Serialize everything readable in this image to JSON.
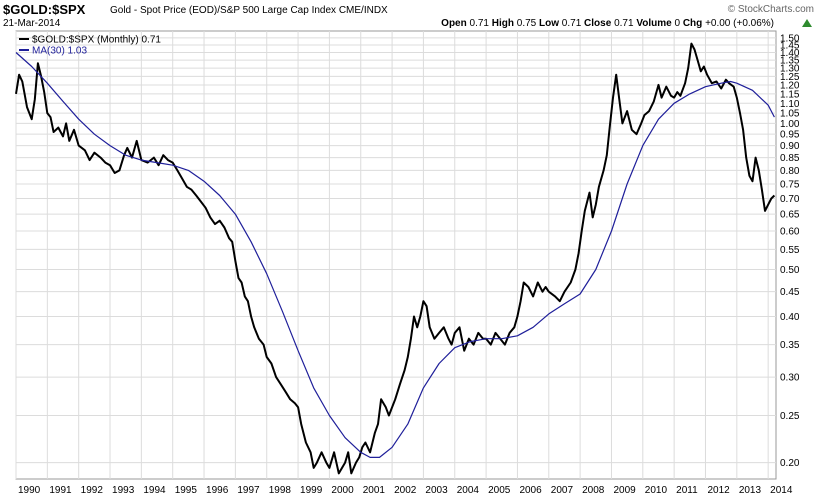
{
  "header": {
    "symbol": "$GOLD:$SPX",
    "description": "Gold - Spot Price (EOD)/S&P 500 Large Cap Index",
    "exchange": "CME/INDX",
    "date": "21-Mar-2014",
    "brand": "© StockCharts.com",
    "quote": {
      "open_label": "Open",
      "open": "0.71",
      "high_label": "High",
      "high": "0.75",
      "low_label": "Low",
      "low": "0.71",
      "close_label": "Close",
      "close": "0.71",
      "volume_label": "Volume",
      "volume": "0",
      "chg_label": "Chg",
      "chg": "+0.00 (+0.06%)"
    },
    "up_icon": "up-triangle-icon",
    "up_color": "#2e8b2e"
  },
  "chart_data": {
    "type": "line",
    "xlim": [
      1990.0,
      2014.25
    ],
    "ylim": [
      0.185,
      1.55
    ],
    "y_scale": "log",
    "grid": true,
    "legend_position": "top-left",
    "x_ticks": [
      "1990",
      "1991",
      "1992",
      "1993",
      "1994",
      "1995",
      "1996",
      "1997",
      "1998",
      "1999",
      "2000",
      "2001",
      "2002",
      "2003",
      "2004",
      "2005",
      "2006",
      "2007",
      "2008",
      "2009",
      "2010",
      "2011",
      "2012",
      "2013",
      "2014"
    ],
    "y_ticks": [
      0.2,
      0.25,
      0.3,
      0.35,
      0.4,
      0.45,
      0.5,
      0.55,
      0.6,
      0.65,
      0.7,
      0.75,
      0.8,
      0.85,
      0.9,
      0.95,
      1.0,
      1.05,
      1.1,
      1.15,
      1.2,
      1.25,
      1.3,
      1.35,
      1.4,
      1.45,
      1.5
    ],
    "series": [
      {
        "name": "$GOLD:$SPX (Monthly) 0.71",
        "color": "#000000",
        "points": [
          [
            1990.0,
            1.15
          ],
          [
            1990.1,
            1.26
          ],
          [
            1990.2,
            1.22
          ],
          [
            1990.35,
            1.08
          ],
          [
            1990.5,
            1.02
          ],
          [
            1990.6,
            1.12
          ],
          [
            1990.7,
            1.33
          ],
          [
            1990.8,
            1.25
          ],
          [
            1990.9,
            1.16
          ],
          [
            1991.0,
            1.05
          ],
          [
            1991.1,
            1.03
          ],
          [
            1991.2,
            0.96
          ],
          [
            1991.35,
            0.98
          ],
          [
            1991.5,
            0.94
          ],
          [
            1991.6,
            1.0
          ],
          [
            1991.7,
            0.92
          ],
          [
            1991.85,
            0.97
          ],
          [
            1992.0,
            0.9
          ],
          [
            1992.2,
            0.88
          ],
          [
            1992.35,
            0.84
          ],
          [
            1992.5,
            0.87
          ],
          [
            1992.7,
            0.85
          ],
          [
            1992.85,
            0.83
          ],
          [
            1993.0,
            0.82
          ],
          [
            1993.15,
            0.79
          ],
          [
            1993.3,
            0.8
          ],
          [
            1993.45,
            0.86
          ],
          [
            1993.55,
            0.89
          ],
          [
            1993.7,
            0.85
          ],
          [
            1993.85,
            0.92
          ],
          [
            1994.0,
            0.84
          ],
          [
            1994.2,
            0.83
          ],
          [
            1994.4,
            0.85
          ],
          [
            1994.55,
            0.82
          ],
          [
            1994.7,
            0.86
          ],
          [
            1994.85,
            0.84
          ],
          [
            1995.0,
            0.83
          ],
          [
            1995.15,
            0.8
          ],
          [
            1995.3,
            0.77
          ],
          [
            1995.45,
            0.74
          ],
          [
            1995.6,
            0.73
          ],
          [
            1995.75,
            0.71
          ],
          [
            1995.9,
            0.69
          ],
          [
            1996.05,
            0.67
          ],
          [
            1996.2,
            0.64
          ],
          [
            1996.35,
            0.62
          ],
          [
            1996.5,
            0.63
          ],
          [
            1996.65,
            0.61
          ],
          [
            1996.8,
            0.58
          ],
          [
            1996.9,
            0.57
          ],
          [
            1997.0,
            0.52
          ],
          [
            1997.1,
            0.48
          ],
          [
            1997.2,
            0.47
          ],
          [
            1997.3,
            0.44
          ],
          [
            1997.4,
            0.43
          ],
          [
            1997.5,
            0.4
          ],
          [
            1997.6,
            0.38
          ],
          [
            1997.75,
            0.36
          ],
          [
            1997.9,
            0.35
          ],
          [
            1998.0,
            0.33
          ],
          [
            1998.15,
            0.32
          ],
          [
            1998.3,
            0.3
          ],
          [
            1998.45,
            0.29
          ],
          [
            1998.6,
            0.28
          ],
          [
            1998.75,
            0.27
          ],
          [
            1998.9,
            0.265
          ],
          [
            1999.0,
            0.26
          ],
          [
            1999.1,
            0.24
          ],
          [
            1999.25,
            0.22
          ],
          [
            1999.4,
            0.21
          ],
          [
            1999.5,
            0.195
          ],
          [
            1999.6,
            0.2
          ],
          [
            1999.75,
            0.21
          ],
          [
            1999.9,
            0.2
          ],
          [
            2000.0,
            0.195
          ],
          [
            2000.15,
            0.21
          ],
          [
            2000.3,
            0.19
          ],
          [
            2000.5,
            0.2
          ],
          [
            2000.6,
            0.21
          ],
          [
            2000.7,
            0.19
          ],
          [
            2000.85,
            0.2
          ],
          [
            2000.95,
            0.205
          ],
          [
            2001.05,
            0.215
          ],
          [
            2001.15,
            0.22
          ],
          [
            2001.3,
            0.21
          ],
          [
            2001.45,
            0.23
          ],
          [
            2001.55,
            0.24
          ],
          [
            2001.65,
            0.27
          ],
          [
            2001.8,
            0.26
          ],
          [
            2001.9,
            0.25
          ],
          [
            2002.0,
            0.26
          ],
          [
            2002.1,
            0.27
          ],
          [
            2002.25,
            0.29
          ],
          [
            2002.4,
            0.31
          ],
          [
            2002.5,
            0.33
          ],
          [
            2002.6,
            0.36
          ],
          [
            2002.7,
            0.4
          ],
          [
            2002.8,
            0.38
          ],
          [
            2002.9,
            0.4
          ],
          [
            2003.0,
            0.43
          ],
          [
            2003.1,
            0.42
          ],
          [
            2003.2,
            0.38
          ],
          [
            2003.35,
            0.36
          ],
          [
            2003.5,
            0.37
          ],
          [
            2003.65,
            0.38
          ],
          [
            2003.8,
            0.36
          ],
          [
            2003.9,
            0.35
          ],
          [
            2004.0,
            0.37
          ],
          [
            2004.15,
            0.38
          ],
          [
            2004.3,
            0.34
          ],
          [
            2004.45,
            0.36
          ],
          [
            2004.6,
            0.35
          ],
          [
            2004.75,
            0.37
          ],
          [
            2004.9,
            0.36
          ],
          [
            2005.0,
            0.36
          ],
          [
            2005.15,
            0.35
          ],
          [
            2005.3,
            0.37
          ],
          [
            2005.45,
            0.36
          ],
          [
            2005.6,
            0.35
          ],
          [
            2005.75,
            0.37
          ],
          [
            2005.9,
            0.38
          ],
          [
            2006.0,
            0.4
          ],
          [
            2006.1,
            0.43
          ],
          [
            2006.2,
            0.47
          ],
          [
            2006.35,
            0.46
          ],
          [
            2006.5,
            0.44
          ],
          [
            2006.65,
            0.47
          ],
          [
            2006.8,
            0.45
          ],
          [
            2006.9,
            0.46
          ],
          [
            2007.0,
            0.45
          ],
          [
            2007.2,
            0.44
          ],
          [
            2007.35,
            0.43
          ],
          [
            2007.5,
            0.45
          ],
          [
            2007.7,
            0.47
          ],
          [
            2007.85,
            0.5
          ],
          [
            2007.95,
            0.54
          ],
          [
            2008.05,
            0.6
          ],
          [
            2008.15,
            0.66
          ],
          [
            2008.3,
            0.72
          ],
          [
            2008.4,
            0.64
          ],
          [
            2008.5,
            0.68
          ],
          [
            2008.6,
            0.74
          ],
          [
            2008.75,
            0.8
          ],
          [
            2008.85,
            0.86
          ],
          [
            2008.95,
            0.99
          ],
          [
            2009.05,
            1.13
          ],
          [
            2009.15,
            1.26
          ],
          [
            2009.25,
            1.12
          ],
          [
            2009.35,
            1.0
          ],
          [
            2009.5,
            1.06
          ],
          [
            2009.65,
            0.97
          ],
          [
            2009.8,
            0.95
          ],
          [
            2009.95,
            1.0
          ],
          [
            2010.05,
            1.04
          ],
          [
            2010.2,
            1.06
          ],
          [
            2010.35,
            1.11
          ],
          [
            2010.5,
            1.2
          ],
          [
            2010.6,
            1.13
          ],
          [
            2010.75,
            1.19
          ],
          [
            2010.9,
            1.14
          ],
          [
            2011.0,
            1.13
          ],
          [
            2011.1,
            1.16
          ],
          [
            2011.2,
            1.14
          ],
          [
            2011.35,
            1.21
          ],
          [
            2011.45,
            1.3
          ],
          [
            2011.55,
            1.46
          ],
          [
            2011.65,
            1.42
          ],
          [
            2011.75,
            1.35
          ],
          [
            2011.85,
            1.28
          ],
          [
            2011.95,
            1.31
          ],
          [
            2012.05,
            1.26
          ],
          [
            2012.2,
            1.21
          ],
          [
            2012.35,
            1.22
          ],
          [
            2012.5,
            1.18
          ],
          [
            2012.65,
            1.23
          ],
          [
            2012.75,
            1.21
          ],
          [
            2012.9,
            1.19
          ],
          [
            2013.0,
            1.13
          ],
          [
            2013.1,
            1.05
          ],
          [
            2013.2,
            0.97
          ],
          [
            2013.3,
            0.85
          ],
          [
            2013.4,
            0.78
          ],
          [
            2013.5,
            0.76
          ],
          [
            2013.6,
            0.85
          ],
          [
            2013.7,
            0.8
          ],
          [
            2013.8,
            0.73
          ],
          [
            2013.9,
            0.66
          ],
          [
            2014.0,
            0.68
          ],
          [
            2014.1,
            0.7
          ],
          [
            2014.2,
            0.71
          ]
        ]
      },
      {
        "name": "MA(30) 1.03",
        "color": "#1f1f9a",
        "points": [
          [
            1990.0,
            1.4
          ],
          [
            1990.5,
            1.31
          ],
          [
            1991.0,
            1.21
          ],
          [
            1991.5,
            1.11
          ],
          [
            1992.0,
            1.02
          ],
          [
            1992.5,
            0.95
          ],
          [
            1993.0,
            0.9
          ],
          [
            1993.5,
            0.86
          ],
          [
            1994.0,
            0.84
          ],
          [
            1994.5,
            0.83
          ],
          [
            1995.0,
            0.82
          ],
          [
            1995.5,
            0.8
          ],
          [
            1996.0,
            0.76
          ],
          [
            1996.5,
            0.71
          ],
          [
            1997.0,
            0.65
          ],
          [
            1997.5,
            0.57
          ],
          [
            1998.0,
            0.49
          ],
          [
            1998.5,
            0.41
          ],
          [
            1999.0,
            0.34
          ],
          [
            1999.5,
            0.285
          ],
          [
            2000.0,
            0.25
          ],
          [
            2000.5,
            0.225
          ],
          [
            2001.0,
            0.21
          ],
          [
            2001.3,
            0.205
          ],
          [
            2001.6,
            0.205
          ],
          [
            2002.0,
            0.215
          ],
          [
            2002.5,
            0.24
          ],
          [
            2003.0,
            0.285
          ],
          [
            2003.5,
            0.32
          ],
          [
            2004.0,
            0.345
          ],
          [
            2004.5,
            0.355
          ],
          [
            2005.0,
            0.36
          ],
          [
            2005.5,
            0.36
          ],
          [
            2006.0,
            0.365
          ],
          [
            2006.5,
            0.38
          ],
          [
            2007.0,
            0.405
          ],
          [
            2007.5,
            0.425
          ],
          [
            2008.0,
            0.445
          ],
          [
            2008.5,
            0.5
          ],
          [
            2009.0,
            0.6
          ],
          [
            2009.5,
            0.75
          ],
          [
            2010.0,
            0.9
          ],
          [
            2010.5,
            1.02
          ],
          [
            2011.0,
            1.1
          ],
          [
            2011.5,
            1.15
          ],
          [
            2012.0,
            1.19
          ],
          [
            2012.5,
            1.21
          ],
          [
            2012.8,
            1.22
          ],
          [
            2013.0,
            1.21
          ],
          [
            2013.5,
            1.17
          ],
          [
            2014.0,
            1.09
          ],
          [
            2014.2,
            1.03
          ]
        ]
      }
    ]
  }
}
